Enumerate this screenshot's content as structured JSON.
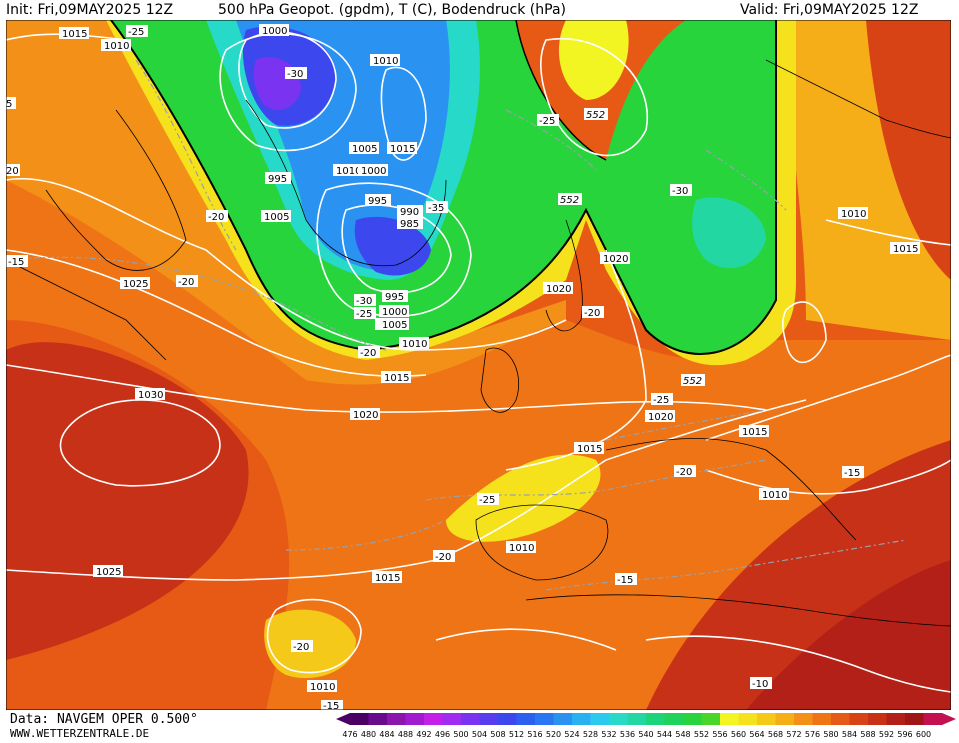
{
  "header": {
    "init": "Init: Fri,09MAY2025 12Z",
    "title": "500 hPa Geopot. (gpdm), T (C), Bodendruck (hPa)",
    "valid": "Valid: Fri,09MAY2025 12Z"
  },
  "footer": {
    "data_source": "Data: NAVGEM OPER 0.500°",
    "website": "WWW.WETTERZENTRALE.DE"
  },
  "legend": {
    "values": [
      "476",
      "480",
      "484",
      "488",
      "492",
      "496",
      "500",
      "504",
      "508",
      "512",
      "516",
      "520",
      "524",
      "528",
      "532",
      "536",
      "540",
      "544",
      "548",
      "552",
      "556",
      "560",
      "564",
      "568",
      "572",
      "576",
      "580",
      "584",
      "588",
      "592",
      "596",
      "600"
    ],
    "colors": [
      "#4b0066",
      "#6a0a8c",
      "#8a16ae",
      "#a21ccf",
      "#c21fe8",
      "#a02cf0",
      "#7a33f0",
      "#5a3cef",
      "#3c48ee",
      "#2d5ff0",
      "#2a78f1",
      "#2a93f2",
      "#2bb0f2",
      "#2ccbee",
      "#26d9c9",
      "#22d7a2",
      "#1ed47b",
      "#1fd25a",
      "#28d43c",
      "#4ad628",
      "#f3f523",
      "#f5e21c",
      "#f5c91a",
      "#f5ad18",
      "#f39017",
      "#ee7416",
      "#e55a16",
      "#d84316",
      "#c73117",
      "#b32017",
      "#a01516",
      "#c21050"
    ]
  },
  "map": {
    "pressure_labels": [
      "1015",
      "1010",
      "1000",
      "1010",
      "995",
      "1005",
      "1015",
      "1010",
      "1005",
      "1000",
      "995",
      "990",
      "985",
      "1005",
      "995",
      "1000",
      "1005",
      "1010",
      "1025",
      "1015",
      "1030",
      "1020",
      "1020",
      "1020",
      "1025",
      "1015",
      "1020",
      "1015",
      "1010",
      "1010",
      "1015",
      "1010",
      "1010",
      "1015"
    ],
    "temperature_labels": [
      "-25",
      "-30",
      "-35",
      "-20",
      "-15",
      "-20",
      "-25",
      "-30",
      "-25",
      "-20",
      "-20",
      "-25",
      "-30",
      "-20",
      "-25",
      "-20",
      "-15",
      "-20",
      "-15",
      "-10",
      "-15",
      "20",
      "5"
    ],
    "geopotential_labels": [
      "552",
      "552",
      "552"
    ]
  }
}
